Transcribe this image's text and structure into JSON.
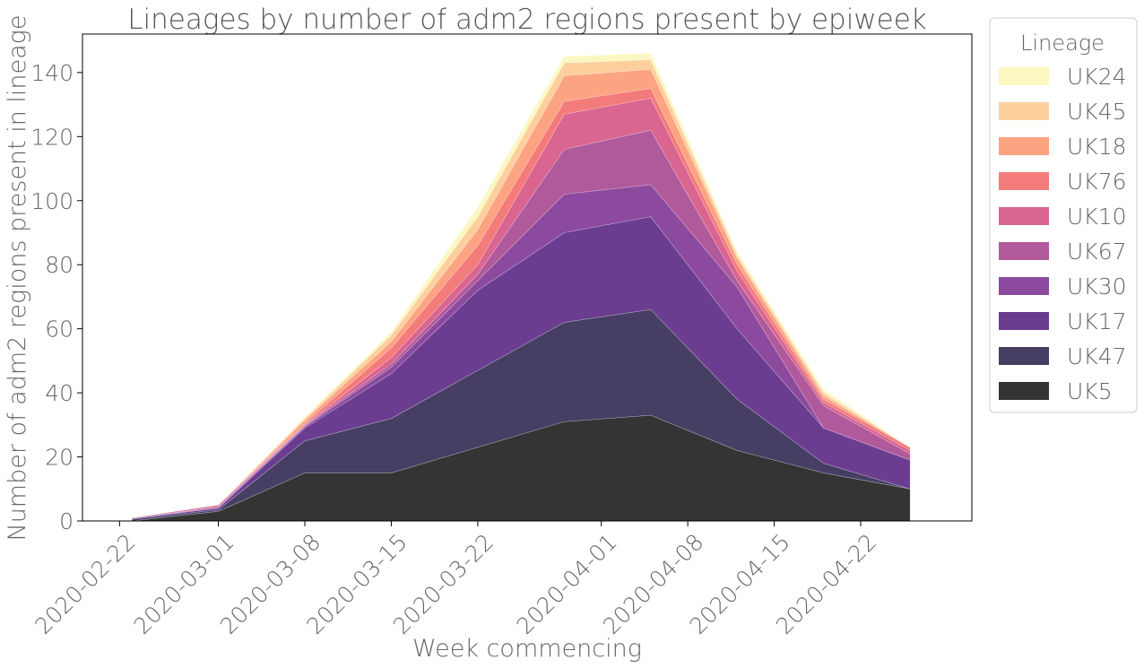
{
  "chart_data": {
    "type": "area",
    "stacked": true,
    "title": "Lineages by number of adm2 regions present by epiweek",
    "xlabel": "Week commencing",
    "ylabel": "Number of adm2 regions present in lineage",
    "x_axis_type": "date",
    "xlim": [
      "2020-02-19",
      "2020-05-01"
    ],
    "ylim": [
      0,
      152
    ],
    "x_ticks": [
      "2020-02-22",
      "2020-03-01",
      "2020-03-08",
      "2020-03-15",
      "2020-03-22",
      "2020-04-01",
      "2020-04-08",
      "2020-04-15",
      "2020-04-22"
    ],
    "y_ticks": [
      0,
      20,
      40,
      60,
      80,
      100,
      120,
      140
    ],
    "grid": false,
    "legend": {
      "title": "Lineage",
      "placement": "outside-right-top"
    },
    "x": [
      "2020-02-23",
      "2020-03-01",
      "2020-03-08",
      "2020-03-15",
      "2020-03-22",
      "2020-03-29",
      "2020-04-05",
      "2020-04-12",
      "2020-04-19",
      "2020-04-26"
    ],
    "series": [
      {
        "name": "UK5",
        "color": "#343434",
        "values": [
          0,
          3,
          15,
          15,
          23,
          31,
          33,
          22,
          15,
          10
        ]
      },
      {
        "name": "UK47",
        "color": "#463e63",
        "values": [
          0.5,
          0.5,
          10,
          17,
          24,
          31,
          33,
          16,
          3,
          0
        ]
      },
      {
        "name": "UK17",
        "color": "#6a3d90",
        "values": [
          0.3,
          0.5,
          4,
          14,
          25,
          28,
          29,
          22,
          11,
          9
        ]
      },
      {
        "name": "UK30",
        "color": "#8c4a9e",
        "values": [
          0,
          0.3,
          0.5,
          2,
          3,
          12,
          10,
          13,
          0,
          0
        ]
      },
      {
        "name": "UK67",
        "color": "#b05a9c",
        "values": [
          0,
          0.2,
          0.3,
          1,
          2,
          14,
          17,
          2,
          7,
          2
        ]
      },
      {
        "name": "UK10",
        "color": "#d96590",
        "values": [
          0.2,
          0.5,
          0.2,
          2,
          3,
          11,
          10,
          3,
          1,
          1
        ]
      },
      {
        "name": "UK76",
        "color": "#f37b7a",
        "values": [
          0,
          0,
          0.5,
          3,
          6,
          4,
          3,
          2,
          1,
          1
        ]
      },
      {
        "name": "UK18",
        "color": "#fca381",
        "values": [
          0,
          0,
          1,
          2,
          5,
          8,
          6,
          2,
          1,
          0
        ]
      },
      {
        "name": "UK45",
        "color": "#fdcf9d",
        "values": [
          0,
          0,
          0.5,
          2,
          4,
          4,
          3,
          1,
          1,
          0
        ]
      },
      {
        "name": "UK24",
        "color": "#fbf7c0",
        "values": [
          0,
          0,
          0.5,
          1,
          3,
          2,
          2,
          1,
          1,
          0
        ]
      }
    ]
  }
}
